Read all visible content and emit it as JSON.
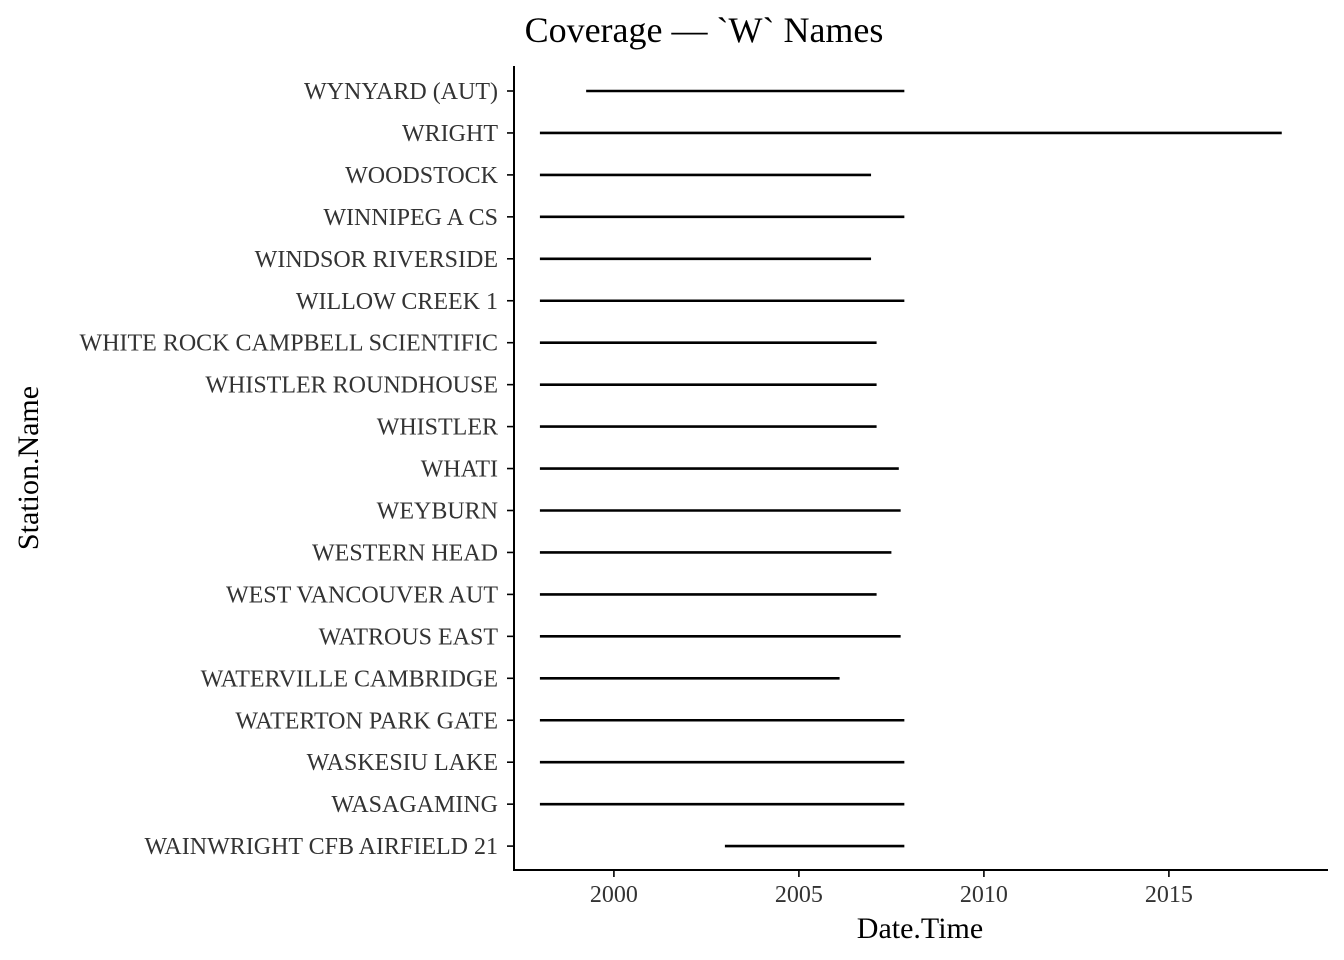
{
  "chart_data": {
    "type": "line",
    "title": "Coverage — `W` Names",
    "xlabel": "Date.Time",
    "ylabel": "Station.Name",
    "x_ticks": [
      2000,
      2005,
      2010,
      2015
    ],
    "xlim": [
      1997.3,
      2019.3
    ],
    "grid": false,
    "legend": "none",
    "line_color": "#000000",
    "series": [
      {
        "name": "WYNYARD (AUT)",
        "start": 1999.25,
        "end": 2007.85
      },
      {
        "name": "WRIGHT",
        "start": 1998.0,
        "end": 2018.05
      },
      {
        "name": "WOODSTOCK",
        "start": 1998.0,
        "end": 2006.95
      },
      {
        "name": "WINNIPEG A CS",
        "start": 1998.0,
        "end": 2007.85
      },
      {
        "name": "WINDSOR RIVERSIDE",
        "start": 1998.0,
        "end": 2006.95
      },
      {
        "name": "WILLOW CREEK 1",
        "start": 1998.0,
        "end": 2007.85
      },
      {
        "name": "WHITE ROCK CAMPBELL SCIENTIFIC",
        "start": 1998.0,
        "end": 2007.1
      },
      {
        "name": "WHISTLER ROUNDHOUSE",
        "start": 1998.0,
        "end": 2007.1
      },
      {
        "name": "WHISTLER",
        "start": 1998.0,
        "end": 2007.1
      },
      {
        "name": "WHATI",
        "start": 1998.0,
        "end": 2007.7
      },
      {
        "name": "WEYBURN",
        "start": 1998.0,
        "end": 2007.75
      },
      {
        "name": "WESTERN HEAD",
        "start": 1998.0,
        "end": 2007.5
      },
      {
        "name": "WEST VANCOUVER AUT",
        "start": 1998.0,
        "end": 2007.1
      },
      {
        "name": "WATROUS EAST",
        "start": 1998.0,
        "end": 2007.75
      },
      {
        "name": "WATERVILLE CAMBRIDGE",
        "start": 1998.0,
        "end": 2006.1
      },
      {
        "name": "WATERTON PARK GATE",
        "start": 1998.0,
        "end": 2007.85
      },
      {
        "name": "WASKESIU LAKE",
        "start": 1998.0,
        "end": 2007.85
      },
      {
        "name": "WASAGAMING",
        "start": 1998.0,
        "end": 2007.85
      },
      {
        "name": "WAINWRIGHT CFB AIRFIELD 21",
        "start": 2003.0,
        "end": 2007.85
      }
    ]
  }
}
